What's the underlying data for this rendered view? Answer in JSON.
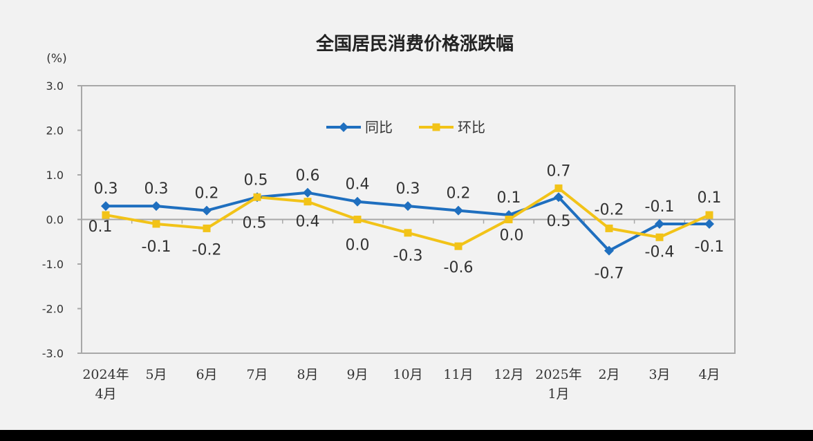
{
  "chart_data": {
    "type": "line",
    "title": "全国居民消费价格涨跌幅",
    "unit": "(%)",
    "ylim": [
      -3.0,
      3.0
    ],
    "yticks": [
      "3.0",
      "2.0",
      "1.0",
      "0.0",
      "-1.0",
      "-2.0",
      "-3.0"
    ],
    "categories": [
      [
        "2024年",
        "4月"
      ],
      [
        "5月"
      ],
      [
        "6月"
      ],
      [
        "7月"
      ],
      [
        "8月"
      ],
      [
        "9月"
      ],
      [
        "10月"
      ],
      [
        "11月"
      ],
      [
        "12月"
      ],
      [
        "2025年",
        "1月"
      ],
      [
        "2月"
      ],
      [
        "3月"
      ],
      [
        "4月"
      ]
    ],
    "series": [
      {
        "name": "同比",
        "color": "#1f6fbf",
        "marker": "diamond",
        "values": [
          0.3,
          0.3,
          0.2,
          0.5,
          0.6,
          0.4,
          0.3,
          0.2,
          0.1,
          0.5,
          -0.7,
          -0.1,
          -0.1
        ],
        "labels": [
          "0.3",
          "0.3",
          "0.2",
          "0.5",
          "0.6",
          "0.4",
          "0.3",
          "0.2",
          "0.1",
          "0.5",
          "-0.7",
          "-0.1",
          "-0.1"
        ]
      },
      {
        "name": "环比",
        "color": "#f2c318",
        "marker": "square",
        "values": [
          0.1,
          -0.1,
          -0.2,
          0.5,
          0.4,
          0.0,
          -0.3,
          -0.6,
          0.0,
          0.7,
          -0.2,
          -0.4,
          0.1
        ],
        "labels": [
          "0.1",
          "-0.1",
          "-0.2",
          "0.5",
          "0.4",
          "0.0",
          "-0.3",
          "-0.6",
          "0.0",
          "0.7",
          "-0.2",
          "-0.4",
          "0.1"
        ]
      }
    ],
    "grid": false,
    "legend": "top-center"
  }
}
